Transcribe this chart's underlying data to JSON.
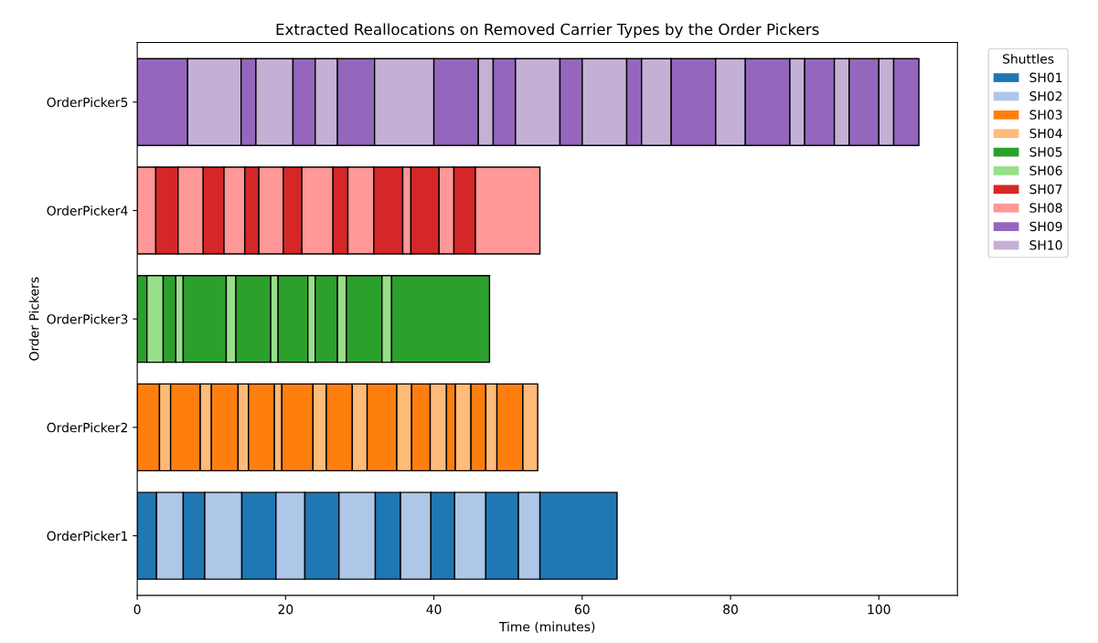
{
  "chart_data": {
    "type": "bar",
    "orientation": "horizontal",
    "stacked": true,
    "title": "Extracted Reallocations on Removed Carrier Types by the Order Pickers",
    "xlabel": "Time (minutes)",
    "ylabel": "Order Pickers",
    "legend_title": "Shuttles",
    "legend": "top right",
    "grid": false,
    "categories": [
      "OrderPicker5",
      "OrderPicker4",
      "OrderPicker3",
      "OrderPicker2",
      "OrderPicker1"
    ],
    "xlim": [
      0,
      110.6
    ],
    "xticks": [
      0,
      20,
      40,
      60,
      80,
      100
    ],
    "series": [
      {
        "name": "SH01",
        "color": "#1f77b4",
        "values": [
          null,
          null,
          null,
          null,
          2.6
        ]
      },
      {
        "name": "SH02",
        "color": "#aec7e8",
        "values": [
          null,
          null,
          null,
          null,
          3.6
        ]
      },
      {
        "color": "#1f77b4",
        "values": [
          null,
          null,
          null,
          null,
          2.9
        ]
      },
      {
        "color": "#aec7e8",
        "values": [
          null,
          null,
          null,
          null,
          5.0
        ]
      },
      {
        "color": "#1f77b4",
        "values": [
          null,
          null,
          null,
          null,
          4.6
        ]
      },
      {
        "color": "#aec7e8",
        "values": [
          null,
          null,
          null,
          null,
          3.9
        ]
      },
      {
        "color": "#1f77b4",
        "values": [
          null,
          null,
          null,
          null,
          4.6
        ]
      },
      {
        "color": "#aec7e8",
        "values": [
          null,
          null,
          null,
          null,
          4.9
        ]
      },
      {
        "color": "#1f77b4",
        "values": [
          null,
          null,
          null,
          null,
          3.4
        ]
      },
      {
        "color": "#aec7e8",
        "values": [
          null,
          null,
          null,
          null,
          4.1
        ]
      },
      {
        "color": "#1f77b4",
        "values": [
          null,
          null,
          null,
          null,
          3.2
        ]
      },
      {
        "color": "#aec7e8",
        "values": [
          null,
          null,
          null,
          null,
          4.2
        ]
      },
      {
        "color": "#1f77b4",
        "values": [
          null,
          null,
          null,
          null,
          4.4
        ]
      },
      {
        "color": "#aec7e8",
        "values": [
          null,
          null,
          null,
          null,
          2.9
        ]
      },
      {
        "color": "#1f77b4",
        "values": [
          null,
          null,
          null,
          null,
          10.4
        ]
      },
      {
        "name": "SH03",
        "color": "#ff7f0e",
        "values": [
          null,
          null,
          null,
          3.0,
          null
        ]
      },
      {
        "name": "SH04",
        "color": "#ffbb78",
        "values": [
          null,
          null,
          null,
          1.5,
          null
        ]
      },
      {
        "color": "#ff7f0e",
        "values": [
          null,
          null,
          null,
          4.0,
          null
        ]
      },
      {
        "color": "#ffbb78",
        "values": [
          null,
          null,
          null,
          1.5,
          null
        ]
      },
      {
        "color": "#ff7f0e",
        "values": [
          null,
          null,
          null,
          3.6,
          null
        ]
      },
      {
        "color": "#ffbb78",
        "values": [
          null,
          null,
          null,
          1.4,
          null
        ]
      },
      {
        "color": "#ff7f0e",
        "values": [
          null,
          null,
          null,
          3.5,
          null
        ]
      },
      {
        "color": "#ffbb78",
        "values": [
          null,
          null,
          null,
          1.0,
          null
        ]
      },
      {
        "color": "#ff7f0e",
        "values": [
          null,
          null,
          null,
          4.2,
          null
        ]
      },
      {
        "color": "#ffbb78",
        "values": [
          null,
          null,
          null,
          1.8,
          null
        ]
      },
      {
        "color": "#ff7f0e",
        "values": [
          null,
          null,
          null,
          3.5,
          null
        ]
      },
      {
        "color": "#ffbb78",
        "values": [
          null,
          null,
          null,
          2.0,
          null
        ]
      },
      {
        "color": "#ff7f0e",
        "values": [
          null,
          null,
          null,
          4.0,
          null
        ]
      },
      {
        "color": "#ffbb78",
        "values": [
          null,
          null,
          null,
          2.0,
          null
        ]
      },
      {
        "color": "#ff7f0e",
        "values": [
          null,
          null,
          null,
          2.5,
          null
        ]
      },
      {
        "color": "#ffbb78",
        "values": [
          null,
          null,
          null,
          2.2,
          null
        ]
      },
      {
        "color": "#ff7f0e",
        "values": [
          null,
          null,
          null,
          1.2,
          null
        ]
      },
      {
        "color": "#ffbb78",
        "values": [
          null,
          null,
          null,
          2.1,
          null
        ]
      },
      {
        "color": "#ff7f0e",
        "values": [
          null,
          null,
          null,
          2.0,
          null
        ]
      },
      {
        "color": "#ffbb78",
        "values": [
          null,
          null,
          null,
          1.5,
          null
        ]
      },
      {
        "color": "#ff7f0e",
        "values": [
          null,
          null,
          null,
          3.5,
          null
        ]
      },
      {
        "color": "#ffbb78",
        "values": [
          null,
          null,
          null,
          2.0,
          null
        ]
      },
      {
        "name": "SH05",
        "color": "#2ca02c",
        "values": [
          null,
          null,
          1.3,
          null,
          null
        ]
      },
      {
        "name": "SH06",
        "color": "#98df8a",
        "values": [
          null,
          null,
          2.2,
          null,
          null
        ]
      },
      {
        "color": "#2ca02c",
        "values": [
          null,
          null,
          1.7,
          null,
          null
        ]
      },
      {
        "color": "#98df8a",
        "values": [
          null,
          null,
          1.0,
          null,
          null
        ]
      },
      {
        "color": "#2ca02c",
        "values": [
          null,
          null,
          5.8,
          null,
          null
        ]
      },
      {
        "color": "#98df8a",
        "values": [
          null,
          null,
          1.3,
          null,
          null
        ]
      },
      {
        "color": "#2ca02c",
        "values": [
          null,
          null,
          4.7,
          null,
          null
        ]
      },
      {
        "color": "#98df8a",
        "values": [
          null,
          null,
          1.0,
          null,
          null
        ]
      },
      {
        "color": "#2ca02c",
        "values": [
          null,
          null,
          4.0,
          null,
          null
        ]
      },
      {
        "color": "#98df8a",
        "values": [
          null,
          null,
          1.0,
          null,
          null
        ]
      },
      {
        "color": "#2ca02c",
        "values": [
          null,
          null,
          3.0,
          null,
          null
        ]
      },
      {
        "color": "#98df8a",
        "values": [
          null,
          null,
          1.2,
          null,
          null
        ]
      },
      {
        "color": "#2ca02c",
        "values": [
          null,
          null,
          4.8,
          null,
          null
        ]
      },
      {
        "color": "#98df8a",
        "values": [
          null,
          null,
          1.3,
          null,
          null
        ]
      },
      {
        "color": "#2ca02c",
        "values": [
          null,
          null,
          13.2,
          null,
          null
        ]
      },
      {
        "name": "SH08",
        "color": "#ff9896",
        "values": [
          null,
          2.5,
          null,
          null,
          null
        ]
      },
      {
        "name": "SH07",
        "color": "#d62728",
        "values": [
          null,
          3.0,
          null,
          null,
          null
        ]
      },
      {
        "color": "#ff9896",
        "values": [
          null,
          3.4,
          null,
          null,
          null
        ]
      },
      {
        "color": "#d62728",
        "values": [
          null,
          2.8,
          null,
          null,
          null
        ]
      },
      {
        "color": "#ff9896",
        "values": [
          null,
          2.8,
          null,
          null,
          null
        ]
      },
      {
        "color": "#d62728",
        "values": [
          null,
          1.9,
          null,
          null,
          null
        ]
      },
      {
        "color": "#ff9896",
        "values": [
          null,
          3.3,
          null,
          null,
          null
        ]
      },
      {
        "color": "#d62728",
        "values": [
          null,
          2.5,
          null,
          null,
          null
        ]
      },
      {
        "color": "#ff9896",
        "values": [
          null,
          4.2,
          null,
          null,
          null
        ]
      },
      {
        "color": "#d62728",
        "values": [
          null,
          2.0,
          null,
          null,
          null
        ]
      },
      {
        "color": "#ff9896",
        "values": [
          null,
          3.5,
          null,
          null,
          null
        ]
      },
      {
        "color": "#d62728",
        "values": [
          null,
          3.9,
          null,
          null,
          null
        ]
      },
      {
        "color": "#ff9896",
        "values": [
          null,
          1.1,
          null,
          null,
          null
        ]
      },
      {
        "color": "#d62728",
        "values": [
          null,
          3.8,
          null,
          null,
          null
        ]
      },
      {
        "color": "#ff9896",
        "values": [
          null,
          2.0,
          null,
          null,
          null
        ]
      },
      {
        "color": "#d62728",
        "values": [
          null,
          2.9,
          null,
          null,
          null
        ]
      },
      {
        "color": "#ff9896",
        "values": [
          null,
          8.7,
          null,
          null,
          null
        ]
      },
      {
        "name": "SH09",
        "color": "#9467bd",
        "values": [
          6.8,
          null,
          null,
          null,
          null
        ]
      },
      {
        "name": "SH10",
        "color": "#c5b0d5",
        "values": [
          7.2,
          null,
          null,
          null,
          null
        ]
      },
      {
        "color": "#9467bd",
        "values": [
          2,
          null,
          null,
          null,
          null
        ]
      },
      {
        "color": "#c5b0d5",
        "values": [
          5,
          null,
          null,
          null,
          null
        ]
      },
      {
        "color": "#9467bd",
        "values": [
          3,
          null,
          null,
          null,
          null
        ]
      },
      {
        "color": "#c5b0d5",
        "values": [
          3,
          null,
          null,
          null,
          null
        ]
      },
      {
        "color": "#9467bd",
        "values": [
          5,
          null,
          null,
          null,
          null
        ]
      },
      {
        "color": "#c5b0d5",
        "values": [
          8,
          null,
          null,
          null,
          null
        ]
      },
      {
        "color": "#9467bd",
        "values": [
          6,
          null,
          null,
          null,
          null
        ]
      },
      {
        "color": "#c5b0d5",
        "values": [
          2,
          null,
          null,
          null,
          null
        ]
      },
      {
        "color": "#9467bd",
        "values": [
          3,
          null,
          null,
          null,
          null
        ]
      },
      {
        "color": "#c5b0d5",
        "values": [
          6,
          null,
          null,
          null,
          null
        ]
      },
      {
        "color": "#9467bd",
        "values": [
          3,
          null,
          null,
          null,
          null
        ]
      },
      {
        "color": "#c5b0d5",
        "values": [
          6,
          null,
          null,
          null,
          null
        ]
      },
      {
        "color": "#9467bd",
        "values": [
          2,
          null,
          null,
          null,
          null
        ]
      },
      {
        "color": "#c5b0d5",
        "values": [
          4,
          null,
          null,
          null,
          null
        ]
      },
      {
        "color": "#9467bd",
        "values": [
          6,
          null,
          null,
          null,
          null
        ]
      },
      {
        "color": "#c5b0d5",
        "values": [
          4,
          null,
          null,
          null,
          null
        ]
      },
      {
        "color": "#9467bd",
        "values": [
          6,
          null,
          null,
          null,
          null
        ]
      },
      {
        "color": "#c5b0d5",
        "values": [
          2,
          null,
          null,
          null,
          null
        ]
      },
      {
        "color": "#9467bd",
        "values": [
          4,
          null,
          null,
          null,
          null
        ]
      },
      {
        "color": "#c5b0d5",
        "values": [
          2,
          null,
          null,
          null,
          null
        ]
      },
      {
        "color": "#9467bd",
        "values": [
          4,
          null,
          null,
          null,
          null
        ]
      },
      {
        "color": "#c5b0d5",
        "values": [
          2,
          null,
          null,
          null,
          null
        ]
      },
      {
        "color": "#9467bd",
        "values": [
          3.4,
          null,
          null,
          null,
          null
        ]
      }
    ]
  }
}
